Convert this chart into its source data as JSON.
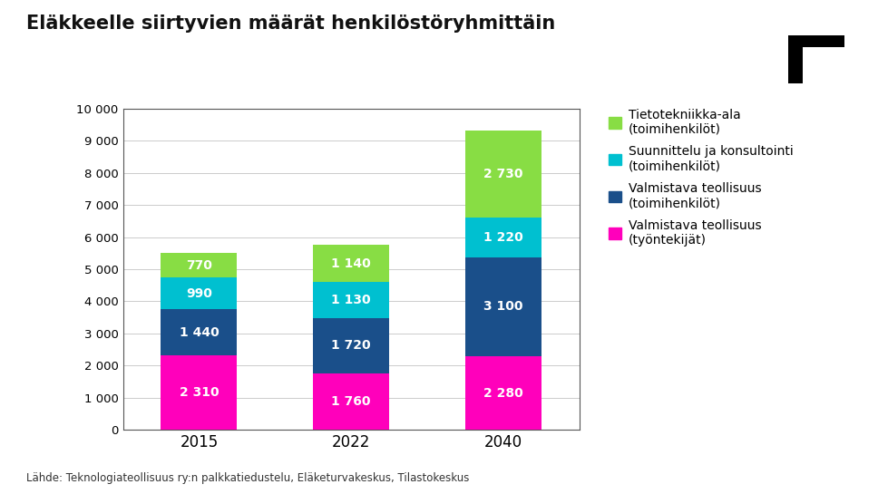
{
  "title": "Eläkkeelle siirtyvien määrät henkilöstöryhmittäin",
  "categories": [
    "2015",
    "2022",
    "2040"
  ],
  "series": {
    "tyontekijat": [
      2310,
      1760,
      2280
    ],
    "valmistava_toimihenkilo": [
      1440,
      1720,
      3100
    ],
    "suunnittelu": [
      990,
      1130,
      1220
    ],
    "tietotekniikka": [
      770,
      1140,
      2730
    ]
  },
  "colors": {
    "tyontekijat": "#FF00BB",
    "valmistava_toimihenkilo": "#1A4F8A",
    "suunnittelu": "#00C0D0",
    "tietotekniikka": "#88DD44"
  },
  "legend_labels": [
    "Tietotekniikka-ala\n(toimihenkilöt)",
    "Suunnittelu ja konsultointi\n(toimihenkilöt)",
    "Valmistava teollisuus\n(toimihenkilöt)",
    "Valmistava teollisuus\n(työntekijät)"
  ],
  "legend_colors": [
    "#88DD44",
    "#00C0D0",
    "#1A4F8A",
    "#FF00BB"
  ],
  "ylim": [
    0,
    10000
  ],
  "yticks": [
    0,
    1000,
    2000,
    3000,
    4000,
    5000,
    6000,
    7000,
    8000,
    9000,
    10000
  ],
  "ytick_labels": [
    "0",
    "1 000",
    "2 000",
    "3 000",
    "4 000",
    "5 000",
    "6 000",
    "7 000",
    "8 000",
    "9 000",
    "10 000"
  ],
  "source": "Lähde: Teknologiateollisuus ry:n palkkatiedustelu, Eläketurvakeskus, Tilastokeskus",
  "background_color": "#FFFFFF",
  "bar_value_labels": {
    "tyontekijat": [
      "2 310",
      "1 760",
      "2 280"
    ],
    "valmistava_toimihenkilo": [
      "1 440",
      "1 720",
      "3 100"
    ],
    "suunnittelu": [
      "990",
      "1 130",
      "1 220"
    ],
    "tietotekniikka": [
      "770",
      "1 140",
      "2 730"
    ]
  }
}
